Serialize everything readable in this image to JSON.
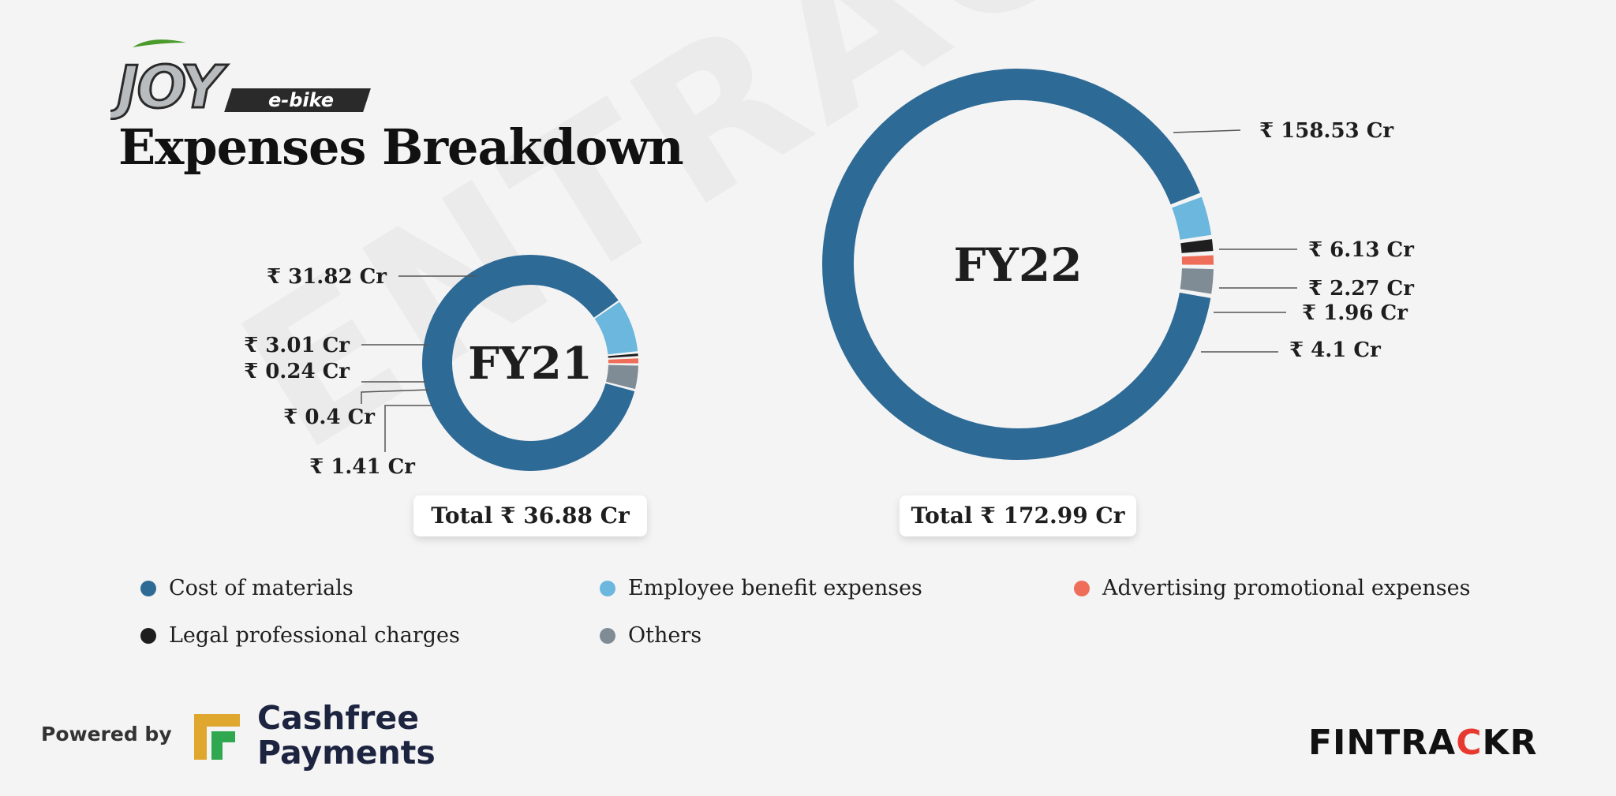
{
  "brand": {
    "logo_main": "JOY",
    "logo_sub": "e-bike"
  },
  "title": "Expenses Breakdown",
  "watermark": "ENTRACKR",
  "colors": {
    "cost_of_materials": "#2e6a96",
    "employee_benefit": "#6bb7dd",
    "legal_professional": "#1e1e1e",
    "advertising": "#ee6e5a",
    "others": "#7f8c95"
  },
  "chart_data": [
    {
      "type": "pie",
      "center_label": "FY21",
      "categories": [
        "Cost of materials",
        "Employee benefit expenses",
        "Legal professional charges",
        "Advertising promotional expenses",
        "Others"
      ],
      "values": [
        31.82,
        3.01,
        0.24,
        0.4,
        1.41
      ],
      "labels": [
        "₹ 31.82 Cr",
        "₹ 3.01 Cr",
        "₹ 0.24 Cr",
        "₹ 0.4 Cr",
        "₹ 1.41 Cr"
      ],
      "total_label": "Total ₹ 36.88 Cr"
    },
    {
      "type": "pie",
      "center_label": "FY22",
      "categories": [
        "Cost of materials",
        "Employee benefit expenses",
        "Legal professional charges",
        "Advertising promotional expenses",
        "Others"
      ],
      "values": [
        158.53,
        6.13,
        2.27,
        1.96,
        4.1
      ],
      "labels": [
        "₹ 158.53 Cr",
        "₹ 6.13 Cr",
        "₹ 2.27 Cr",
        "₹ 1.96 Cr",
        "₹ 4.1 Cr"
      ],
      "total_label": "Total ₹ 172.99 Cr"
    }
  ],
  "legend": [
    {
      "label": "Cost of materials",
      "color": "#2e6a96"
    },
    {
      "label": "Employee benefit expenses",
      "color": "#6bb7dd"
    },
    {
      "label": "Advertising promotional expenses",
      "color": "#ee6e5a"
    },
    {
      "label": "Legal professional charges",
      "color": "#1e1e1e"
    },
    {
      "label": "Others",
      "color": "#7f8c95"
    }
  ],
  "footer": {
    "powered_by": "Powered by",
    "cashfree_line1": "Cashfree",
    "cashfree_line2": "Payments",
    "fintrackr_main": "FINTRA",
    "fintrackr_accent": "C",
    "fintrackr_end": "KR"
  }
}
